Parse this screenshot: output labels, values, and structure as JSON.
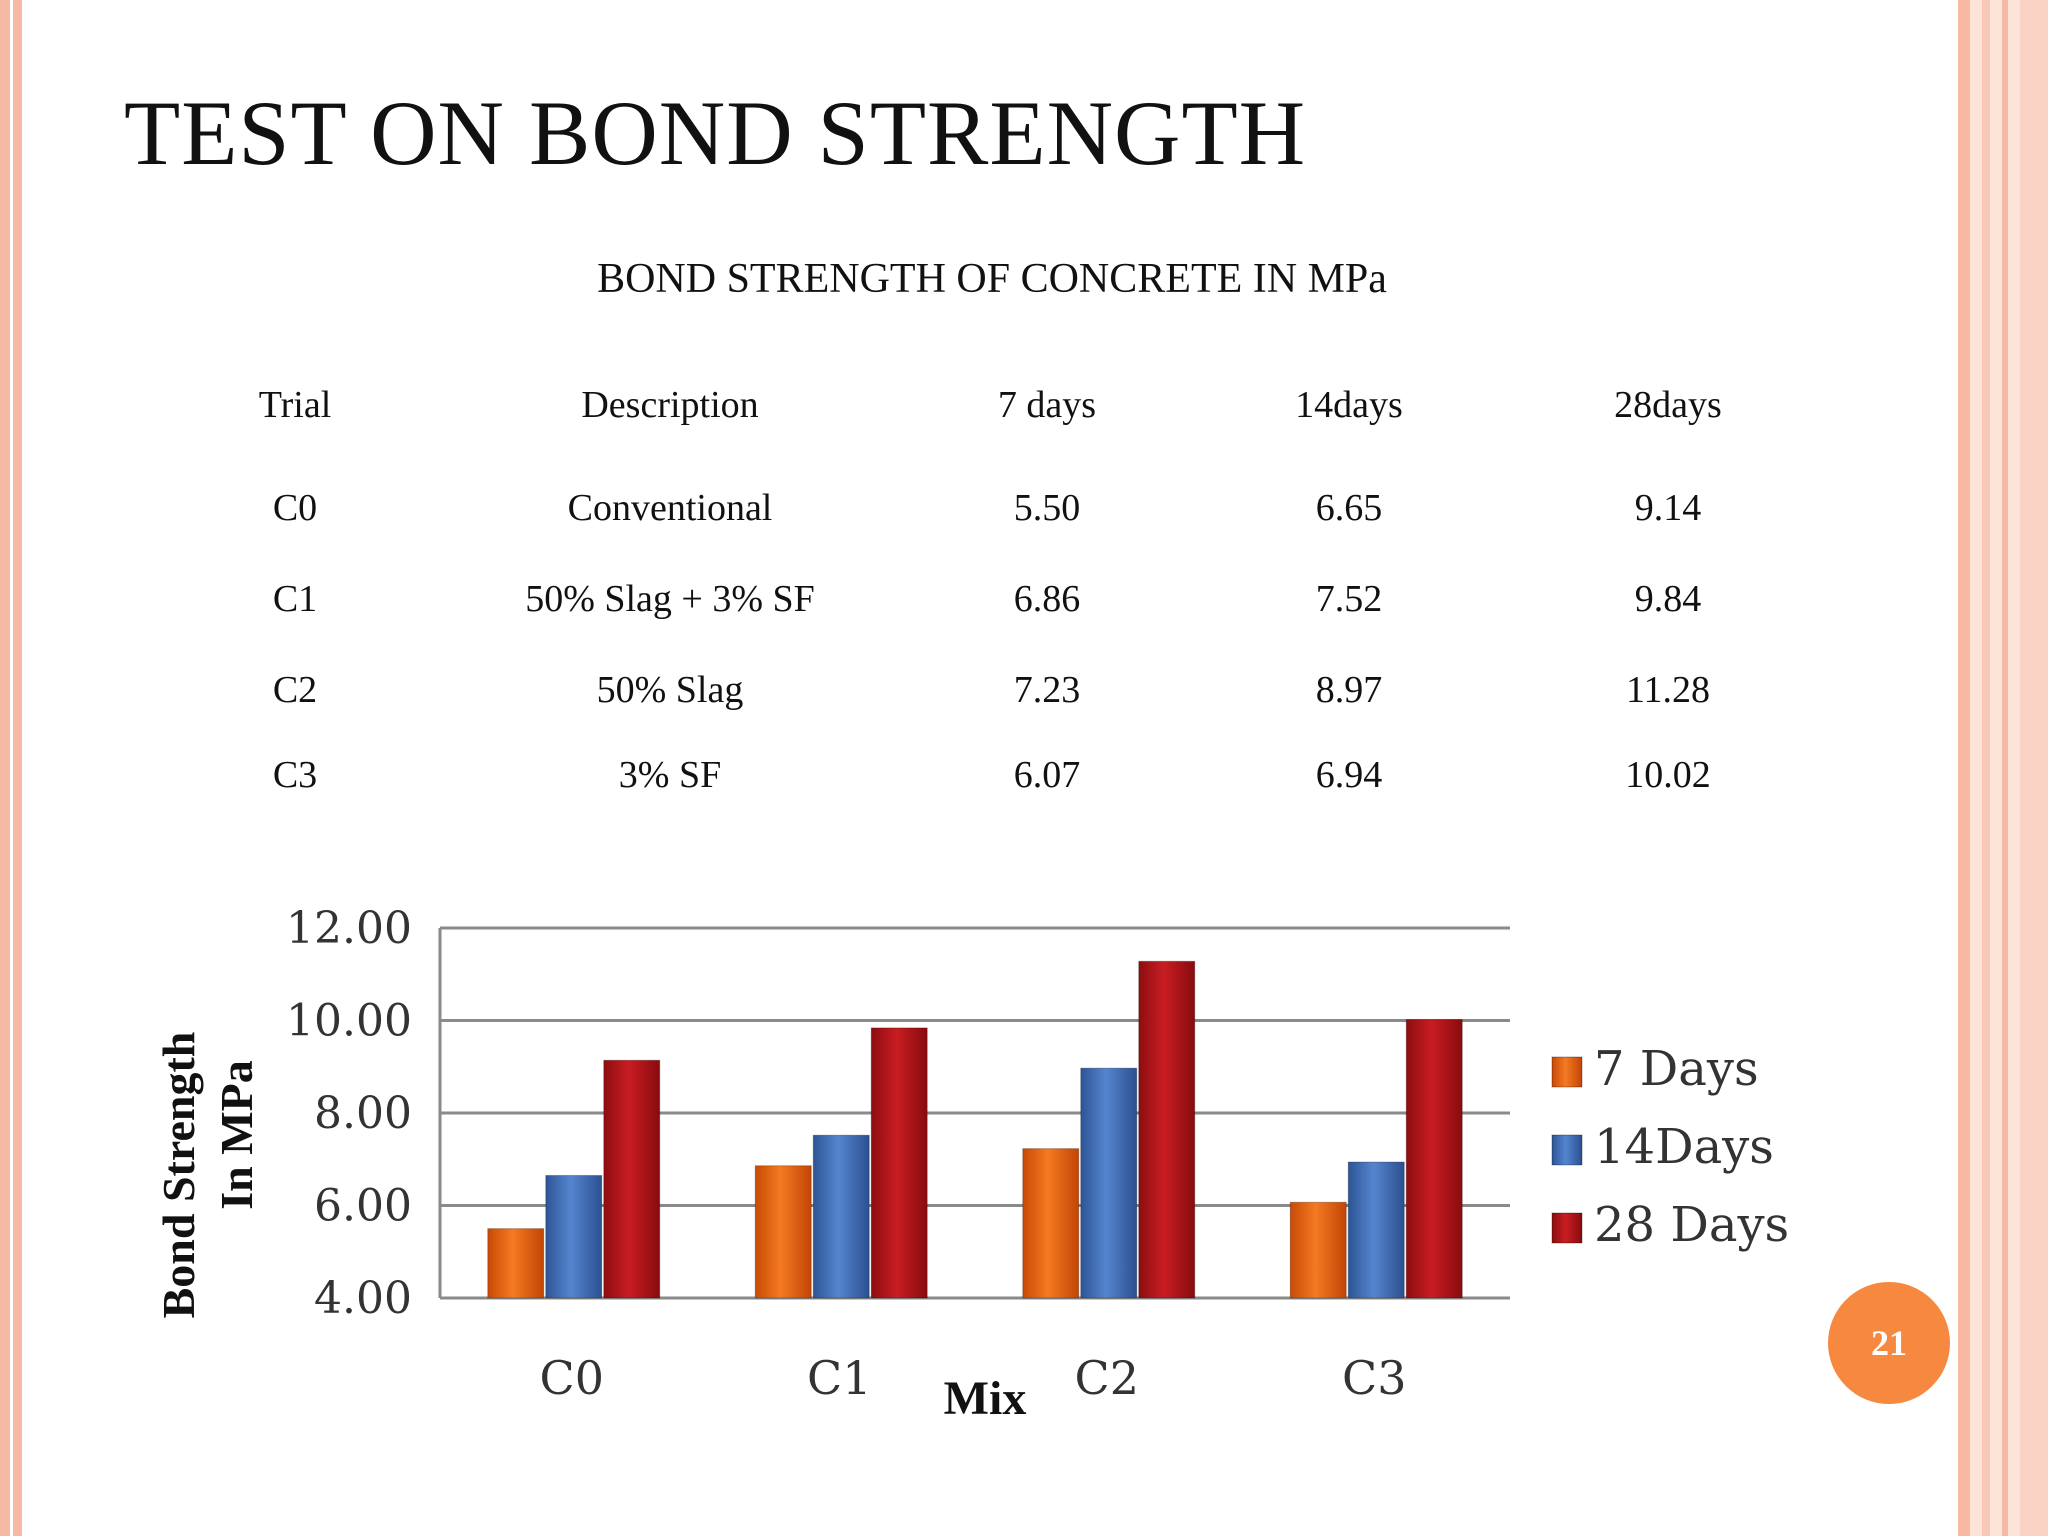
{
  "slide": {
    "title": "TEST ON BOND STRENGTH",
    "page_number": "21"
  },
  "table": {
    "title": "BOND STRENGTH OF CONCRETE IN MPa",
    "headers": [
      "Trial",
      "Description",
      "7 days",
      "14days",
      "28days"
    ],
    "rows": [
      [
        "C0",
        "Conventional",
        "5.50",
        "6.65",
        "9.14"
      ],
      [
        "C1",
        "50% Slag + 3% SF",
        "6.86",
        "7.52",
        "9.84"
      ],
      [
        "C2",
        "50% Slag",
        "7.23",
        "8.97",
        "11.28"
      ],
      [
        "C3",
        "3% SF",
        "6.07",
        "6.94",
        "10.02"
      ]
    ]
  },
  "chart_data": {
    "type": "bar",
    "categories": [
      "C0",
      "C1",
      "C2",
      "C3"
    ],
    "series": [
      {
        "name": "7 Days",
        "values": [
          5.5,
          6.86,
          7.23,
          6.07
        ],
        "color": "#e8610c"
      },
      {
        "name": "14Days",
        "values": [
          6.65,
          7.52,
          8.97,
          6.94
        ],
        "color": "#3f6fb8"
      },
      {
        "name": "28 Days",
        "values": [
          9.14,
          9.84,
          11.28,
          10.02
        ],
        "color": "#b5151b"
      }
    ],
    "yticks": [
      "12.00",
      "10.00",
      "8.00",
      "6.00",
      "4.00"
    ],
    "ylim": [
      4,
      12
    ],
    "ylabel_line1": "Bond Strength",
    "ylabel_line2": "In MPa",
    "xlabel": "Mix",
    "grid": true,
    "legend_position": "right"
  }
}
